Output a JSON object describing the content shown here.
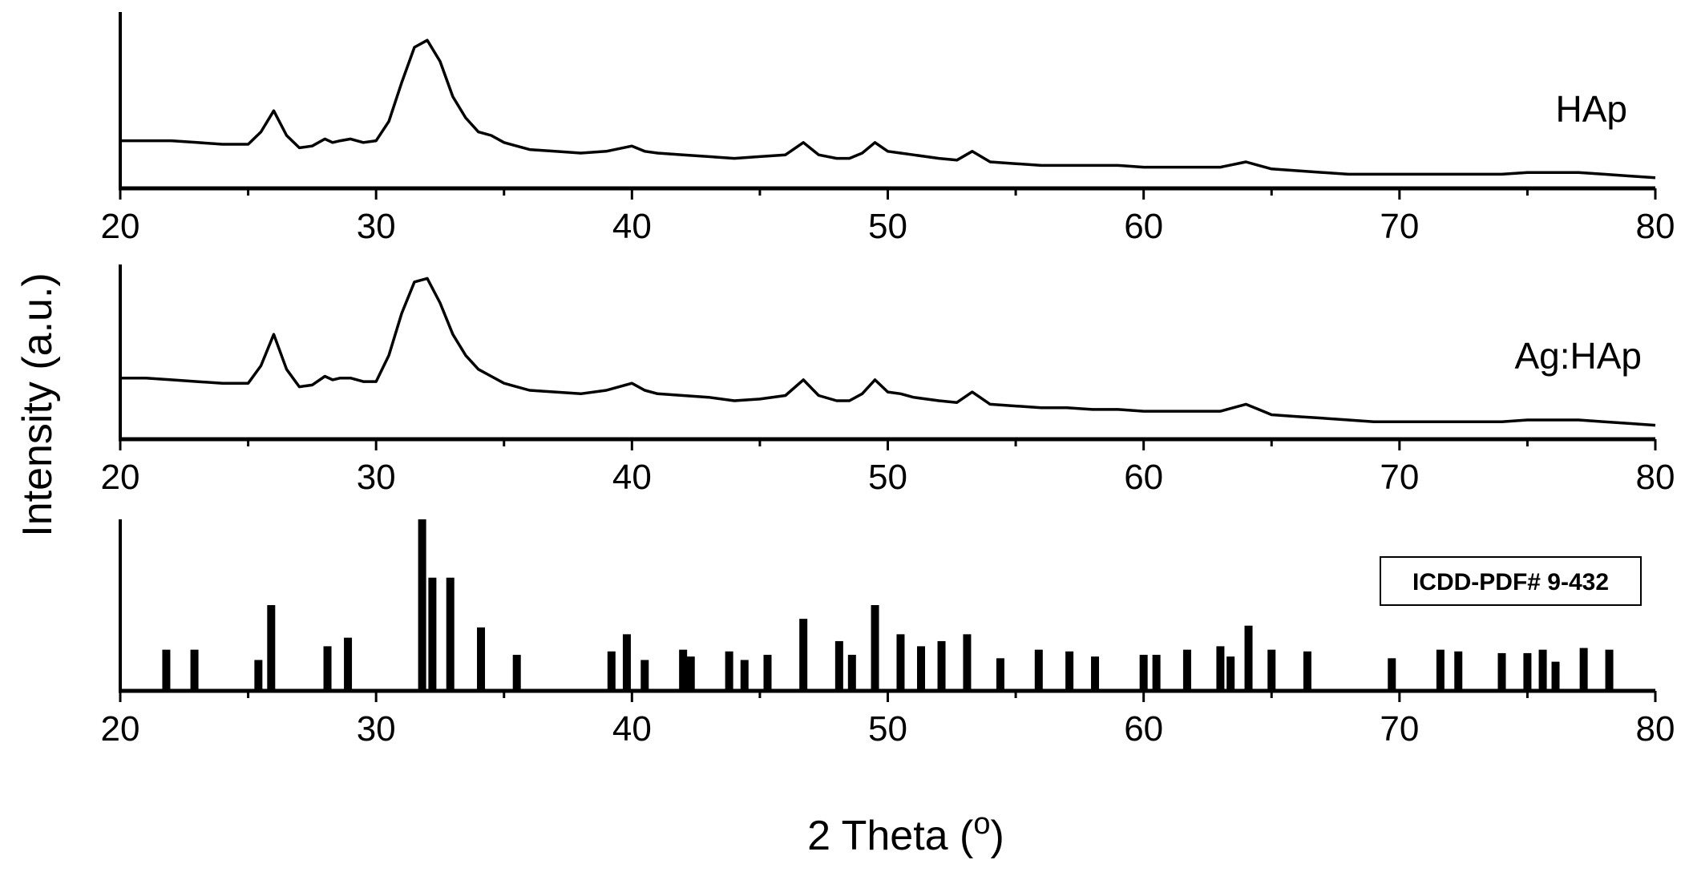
{
  "chart_data": {
    "type": "line",
    "xlabel": "2 Theta (",
    "xlabel_unit": "o",
    "ylabel": "Intensity (a.u.)",
    "xlim": [
      20,
      80
    ],
    "x_ticks": [
      20,
      30,
      40,
      50,
      60,
      70,
      80
    ],
    "grid": false,
    "panels": [
      {
        "type": "line",
        "series_label": "HAp",
        "ylim": [
          0,
          1
        ],
        "series": [
          {
            "name": "HAp",
            "x": [
              20,
              21,
              22,
              23,
              24,
              25,
              25.5,
              26,
              26.5,
              27,
              27.5,
              28,
              28.3,
              28.6,
              29,
              29.5,
              30,
              30.5,
              31,
              31.5,
              32,
              32.5,
              33,
              33.5,
              34,
              34.5,
              35,
              36,
              37,
              38,
              39,
              40,
              40.5,
              41,
              42,
              43,
              44,
              45,
              46,
              46.7,
              47.3,
              48,
              48.5,
              49,
              49.5,
              50,
              50.5,
              51,
              52,
              52.7,
              53.3,
              54,
              55,
              56,
              57,
              58,
              59,
              60,
              61,
              62,
              63,
              64,
              64.5,
              65,
              66,
              67,
              68,
              69,
              70,
              71,
              72,
              73,
              74,
              75,
              76,
              77,
              78,
              79,
              80
            ],
            "y": [
              0.27,
              0.27,
              0.27,
              0.26,
              0.25,
              0.25,
              0.32,
              0.44,
              0.3,
              0.23,
              0.24,
              0.28,
              0.26,
              0.27,
              0.28,
              0.26,
              0.27,
              0.38,
              0.6,
              0.8,
              0.84,
              0.72,
              0.52,
              0.4,
              0.32,
              0.3,
              0.26,
              0.22,
              0.21,
              0.2,
              0.21,
              0.24,
              0.21,
              0.2,
              0.19,
              0.18,
              0.17,
              0.18,
              0.19,
              0.26,
              0.19,
              0.17,
              0.17,
              0.2,
              0.26,
              0.21,
              0.2,
              0.19,
              0.17,
              0.16,
              0.21,
              0.15,
              0.14,
              0.13,
              0.13,
              0.13,
              0.13,
              0.12,
              0.12,
              0.12,
              0.12,
              0.15,
              0.13,
              0.11,
              0.1,
              0.09,
              0.08,
              0.08,
              0.08,
              0.08,
              0.08,
              0.08,
              0.08,
              0.09,
              0.09,
              0.09,
              0.08,
              0.07,
              0.06
            ]
          }
        ]
      },
      {
        "type": "line",
        "series_label": "Ag:HAp",
        "ylim": [
          0,
          1
        ],
        "series": [
          {
            "name": "Ag:HAp",
            "x": [
              20,
              21,
              22,
              23,
              24,
              25,
              25.5,
              26,
              26.5,
              27,
              27.5,
              28,
              28.3,
              28.6,
              29,
              29.5,
              30,
              30.5,
              31,
              31.5,
              32,
              32.5,
              33,
              33.5,
              34,
              34.5,
              35,
              36,
              37,
              38,
              39,
              40,
              40.5,
              41,
              42,
              43,
              44,
              45,
              46,
              46.7,
              47.3,
              48,
              48.5,
              49,
              49.5,
              50,
              50.5,
              51,
              52,
              52.7,
              53.3,
              54,
              55,
              56,
              57,
              58,
              59,
              60,
              61,
              62,
              63,
              64,
              64.5,
              65,
              66,
              67,
              68,
              69,
              70,
              71,
              72,
              73,
              74,
              75,
              76,
              77,
              78,
              79,
              80
            ],
            "y": [
              0.35,
              0.35,
              0.34,
              0.33,
              0.32,
              0.32,
              0.42,
              0.6,
              0.4,
              0.3,
              0.31,
              0.36,
              0.34,
              0.35,
              0.35,
              0.33,
              0.33,
              0.48,
              0.72,
              0.9,
              0.92,
              0.78,
              0.6,
              0.48,
              0.4,
              0.36,
              0.32,
              0.28,
              0.27,
              0.26,
              0.28,
              0.32,
              0.28,
              0.26,
              0.25,
              0.24,
              0.22,
              0.23,
              0.25,
              0.34,
              0.25,
              0.22,
              0.22,
              0.26,
              0.34,
              0.27,
              0.26,
              0.24,
              0.22,
              0.21,
              0.27,
              0.2,
              0.19,
              0.18,
              0.18,
              0.17,
              0.17,
              0.16,
              0.16,
              0.16,
              0.16,
              0.2,
              0.17,
              0.14,
              0.13,
              0.12,
              0.11,
              0.1,
              0.1,
              0.1,
              0.1,
              0.1,
              0.1,
              0.11,
              0.11,
              0.11,
              0.1,
              0.09,
              0.08
            ]
          }
        ]
      },
      {
        "type": "bar",
        "series_label": "ICDD-PDF# 9-432",
        "ylim": [
          0,
          1
        ],
        "x": [
          21.8,
          22.9,
          25.4,
          25.9,
          28.1,
          28.9,
          31.8,
          32.2,
          32.9,
          34.1,
          35.5,
          39.2,
          39.8,
          40.5,
          42.0,
          42.3,
          43.8,
          44.4,
          45.3,
          46.7,
          48.1,
          48.6,
          49.5,
          50.5,
          51.3,
          52.1,
          53.1,
          54.4,
          55.9,
          57.1,
          58.1,
          60.0,
          60.5,
          61.7,
          63.0,
          63.4,
          64.1,
          65.0,
          66.4,
          69.7,
          71.6,
          72.3,
          74.0,
          75.0,
          75.6,
          76.1,
          77.2,
          78.2
        ],
        "values": [
          0.24,
          0.24,
          0.18,
          0.5,
          0.26,
          0.31,
          1.0,
          0.66,
          0.66,
          0.37,
          0.21,
          0.23,
          0.33,
          0.18,
          0.24,
          0.2,
          0.23,
          0.18,
          0.21,
          0.42,
          0.29,
          0.21,
          0.5,
          0.33,
          0.26,
          0.29,
          0.33,
          0.19,
          0.24,
          0.23,
          0.2,
          0.21,
          0.21,
          0.24,
          0.26,
          0.2,
          0.38,
          0.24,
          0.23,
          0.19,
          0.24,
          0.23,
          0.22,
          0.22,
          0.24,
          0.17,
          0.25,
          0.24
        ]
      }
    ]
  }
}
